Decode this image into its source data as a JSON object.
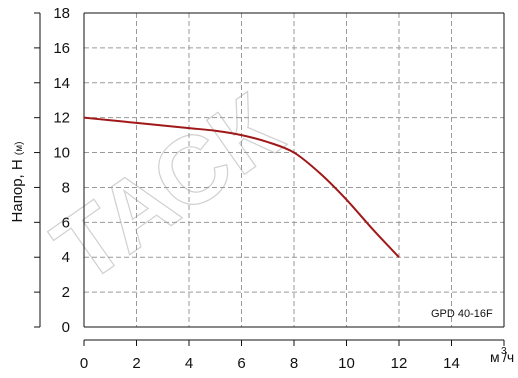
{
  "chart_data": {
    "type": "line",
    "watermark": "ТАСК",
    "ylabel_main": "Напор, Н",
    "ylabel_unit": "(м)",
    "xlabel_unit": "м",
    "xlabel_sup": "3",
    "xlabel_tail": "/ч",
    "model_label": "GPD 40-16F",
    "xlim": [
      0,
      16
    ],
    "ylim": [
      0,
      18
    ],
    "x_ticks": [
      0,
      2,
      4,
      6,
      8,
      10,
      12,
      14
    ],
    "y_ticks": [
      0,
      2,
      4,
      6,
      8,
      10,
      12,
      14,
      16,
      18
    ],
    "grid": true,
    "series": [
      {
        "color": "#a01818",
        "x": [
          0,
          1,
          2,
          3,
          4,
          5,
          6,
          7,
          8,
          9,
          10,
          11,
          12
        ],
        "y": [
          12.0,
          11.85,
          11.7,
          11.55,
          11.4,
          11.25,
          11.0,
          10.6,
          10.0,
          8.8,
          7.3,
          5.6,
          4.0
        ]
      }
    ]
  }
}
